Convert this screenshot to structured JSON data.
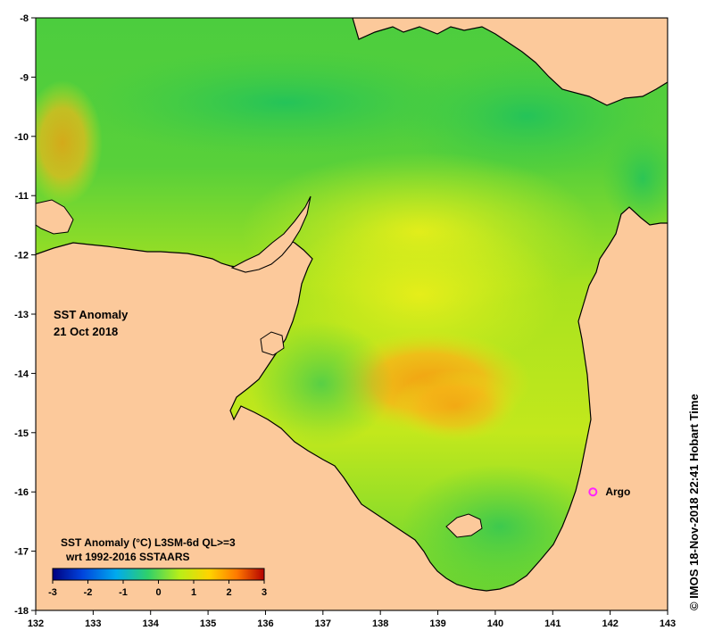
{
  "map": {
    "title_line1": "SST Anomaly",
    "title_line2": "21 Oct 2018",
    "colorbar_title": "SST Anomaly (°C) L3SM-6d QL>=3",
    "colorbar_subtitle": "wrt 1992-2016 SSTAARS",
    "colorbar_ticks": [
      "-3",
      "-2",
      "-1",
      "0",
      "1",
      "2",
      "3"
    ],
    "colorbar_range": [
      -3,
      3
    ],
    "colorbar_colors": [
      "#00007f",
      "#0044dd",
      "#00aaee",
      "#2fd06a",
      "#b8ee18",
      "#ffd400",
      "#ff7a00",
      "#b40000"
    ],
    "x_ticks": [
      "132",
      "133",
      "134",
      "135",
      "136",
      "137",
      "138",
      "139",
      "140",
      "141",
      "142",
      "143"
    ],
    "y_ticks": [
      "-8",
      "-9",
      "-10",
      "-11",
      "-12",
      "-13",
      "-14",
      "-15",
      "-16",
      "-17",
      "-18"
    ],
    "lon_range": [
      132,
      143
    ],
    "lat_range": [
      -18,
      -8
    ],
    "land_color": "#fcc99b",
    "marker": {
      "label": "Argo",
      "lon": 141.7,
      "lat": -16.0,
      "color": "#ff22ff"
    },
    "credit": "© IMOS 18-Nov-2018 22:41 Hobart Time"
  }
}
